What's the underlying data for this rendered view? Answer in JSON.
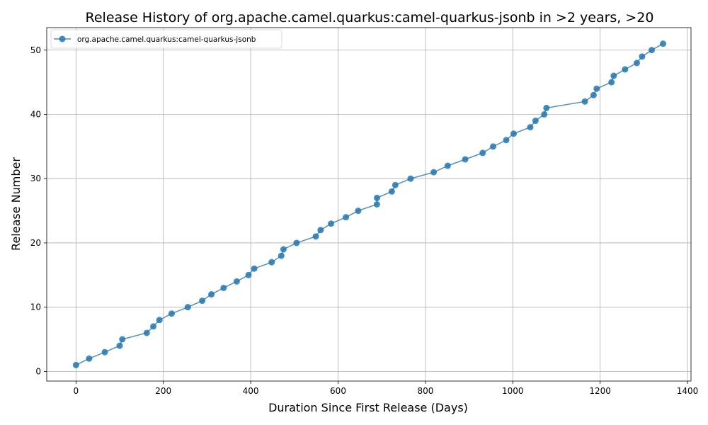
{
  "chart_data": {
    "type": "line",
    "title": "Release History of org.apache.camel.quarkus:camel-quarkus-jsonb in >2 years, >20",
    "xlabel": "Duration Since First Release (Days)",
    "ylabel": "Release Number",
    "xlim": [
      -67,
      1408
    ],
    "ylim": [
      -1.5,
      53.5
    ],
    "xticks": [
      0,
      200,
      400,
      600,
      800,
      1000,
      1200,
      1400
    ],
    "yticks": [
      0,
      10,
      20,
      30,
      40,
      50
    ],
    "grid": true,
    "legend_position": "top-left",
    "colors": {
      "series": "#1f77b4",
      "grid": "#b0b0b0",
      "axis": "#000000"
    },
    "series": [
      {
        "name": "org.apache.camel.quarkus:camel-quarkus-jsonb",
        "marker": "circle",
        "points": [
          [
            0,
            1
          ],
          [
            30,
            2
          ],
          [
            66,
            3
          ],
          [
            100,
            4
          ],
          [
            106,
            5
          ],
          [
            162,
            6
          ],
          [
            177,
            7
          ],
          [
            191,
            8
          ],
          [
            219,
            9
          ],
          [
            256,
            10
          ],
          [
            289,
            11
          ],
          [
            310,
            12
          ],
          [
            338,
            13
          ],
          [
            368,
            14
          ],
          [
            395,
            15
          ],
          [
            408,
            16
          ],
          [
            448,
            17
          ],
          [
            470,
            18
          ],
          [
            475,
            19
          ],
          [
            505,
            20
          ],
          [
            549,
            21
          ],
          [
            560,
            22
          ],
          [
            584,
            23
          ],
          [
            618,
            24
          ],
          [
            646,
            25
          ],
          [
            689,
            26
          ],
          [
            689,
            27
          ],
          [
            723,
            28
          ],
          [
            731,
            29
          ],
          [
            766,
            30
          ],
          [
            819,
            31
          ],
          [
            851,
            32
          ],
          [
            891,
            33
          ],
          [
            931,
            34
          ],
          [
            955,
            35
          ],
          [
            985,
            36
          ],
          [
            1002,
            37
          ],
          [
            1040,
            38
          ],
          [
            1052,
            39
          ],
          [
            1072,
            40
          ],
          [
            1077,
            41
          ],
          [
            1165,
            42
          ],
          [
            1185,
            43
          ],
          [
            1192,
            44
          ],
          [
            1226,
            45
          ],
          [
            1231,
            46
          ],
          [
            1257,
            47
          ],
          [
            1284,
            48
          ],
          [
            1296,
            49
          ],
          [
            1318,
            50
          ],
          [
            1344,
            51
          ]
        ]
      }
    ]
  }
}
